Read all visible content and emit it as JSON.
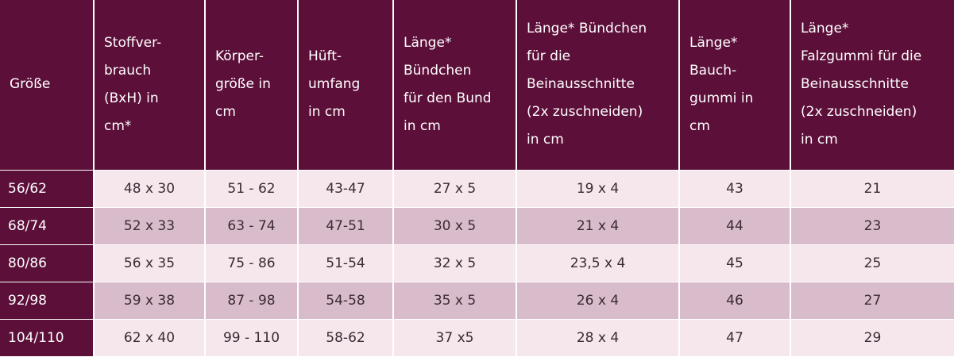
{
  "table": {
    "header": [
      "Größe",
      "Stoffver-\nbrauch\n(BxH)    in\ncm*",
      "Körper-\ngröße in\ncm",
      "Hüft-\numfang\nin cm",
      "Länge*\nBündchen\nfür den Bund\nin cm",
      "Länge* Bündchen\nfür die\nBeinausschnitte\n(2x zuschneiden)\nin cm",
      "Länge*\nBauch-\ngummi in\ncm",
      "Länge*\nFalzgummi für die\nBeinausschnitte\n(2x zuschneiden)\nin cm"
    ],
    "rows": [
      [
        "56/62",
        "48 x 30",
        "51 - 62",
        "43-47",
        "27 x 5",
        "19 x 4",
        "43",
        "21"
      ],
      [
        "68/74",
        "52 x 33",
        "63 - 74",
        "47-51",
        "30 x 5",
        "21 x 4",
        "44",
        "23"
      ],
      [
        "80/86",
        "56 x 35",
        "75 - 86",
        "51-54",
        "32 x 5",
        "23,5 x 4",
        "45",
        "25"
      ],
      [
        "92/98",
        "59 x 38",
        "87 - 98",
        "54-58",
        "35 x 5",
        "26 x 4",
        "46",
        "27"
      ],
      [
        "104/110",
        "62 x 40",
        "99 - 110",
        "58-62",
        "37 x5",
        "28 x 4",
        "47",
        "29"
      ]
    ]
  }
}
